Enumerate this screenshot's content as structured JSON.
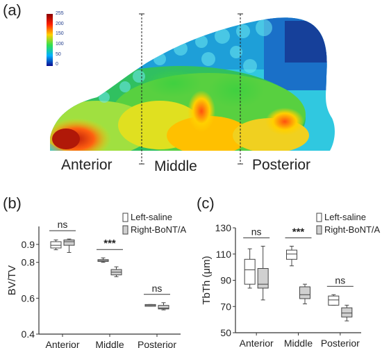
{
  "panel_a": {
    "label": "(a)",
    "colorbar_ticks": [
      "255",
      "200",
      "150",
      "100",
      "50",
      "0"
    ],
    "regions": [
      "Anterior",
      "Middle",
      "Posterior"
    ]
  },
  "chart_data": [
    {
      "panel": "(b)",
      "type": "box",
      "ylabel": "BV/TV",
      "categories": [
        "Anterior",
        "Middle",
        "Posterior"
      ],
      "yticks": [
        "0.4",
        "0.6",
        "0.8",
        "0.9"
      ],
      "ylim": [
        0.4,
        1.0
      ],
      "legend": [
        "Left-saline",
        "Right-BoNT/A"
      ],
      "series": [
        {
          "name": "Left-saline",
          "color": "#ffffff",
          "boxes": [
            {
              "min": 0.87,
              "q1": 0.88,
              "median": 0.895,
              "q3": 0.915,
              "max": 0.925
            },
            {
              "min": 0.8,
              "q1": 0.805,
              "median": 0.81,
              "q3": 0.815,
              "max": 0.825
            },
            {
              "min": 0.555,
              "q1": 0.555,
              "median": 0.56,
              "q3": 0.565,
              "max": 0.565
            }
          ]
        },
        {
          "name": "Right-BoNT/A",
          "color": "#d0d0d0",
          "boxes": [
            {
              "min": 0.855,
              "q1": 0.895,
              "median": 0.915,
              "q3": 0.925,
              "max": 0.93
            },
            {
              "min": 0.72,
              "q1": 0.73,
              "median": 0.745,
              "q3": 0.76,
              "max": 0.775
            },
            {
              "min": 0.535,
              "q1": 0.54,
              "median": 0.545,
              "q3": 0.56,
              "max": 0.575
            }
          ]
        }
      ],
      "significance": [
        "ns",
        "***",
        "ns"
      ]
    },
    {
      "panel": "(c)",
      "type": "box",
      "ylabel": "TbTh (μm)",
      "categories": [
        "Anterior",
        "Middle",
        "Posterior"
      ],
      "yticks": [
        "50",
        "70",
        "90",
        "110",
        "130"
      ],
      "ylim": [
        50,
        130
      ],
      "legend": [
        "Left-saline",
        "Right-BoNT/A"
      ],
      "series": [
        {
          "name": "Left-saline",
          "color": "#ffffff",
          "boxes": [
            {
              "min": 84,
              "q1": 87,
              "median": 98,
              "q3": 106,
              "max": 114
            },
            {
              "min": 101,
              "q1": 106,
              "median": 110,
              "q3": 113,
              "max": 116
            },
            {
              "min": 71,
              "q1": 71,
              "median": 75,
              "q3": 78,
              "max": 79
            }
          ]
        },
        {
          "name": "Right-BoNT/A",
          "color": "#d0d0d0",
          "boxes": [
            {
              "min": 75,
              "q1": 84,
              "median": 87,
              "q3": 99,
              "max": 116
            },
            {
              "min": 72,
              "q1": 76,
              "median": 79,
              "q3": 85,
              "max": 87
            },
            {
              "min": 59,
              "q1": 62,
              "median": 65,
              "q3": 69,
              "max": 71
            }
          ]
        }
      ],
      "significance": [
        "ns",
        "***",
        "ns"
      ]
    }
  ]
}
